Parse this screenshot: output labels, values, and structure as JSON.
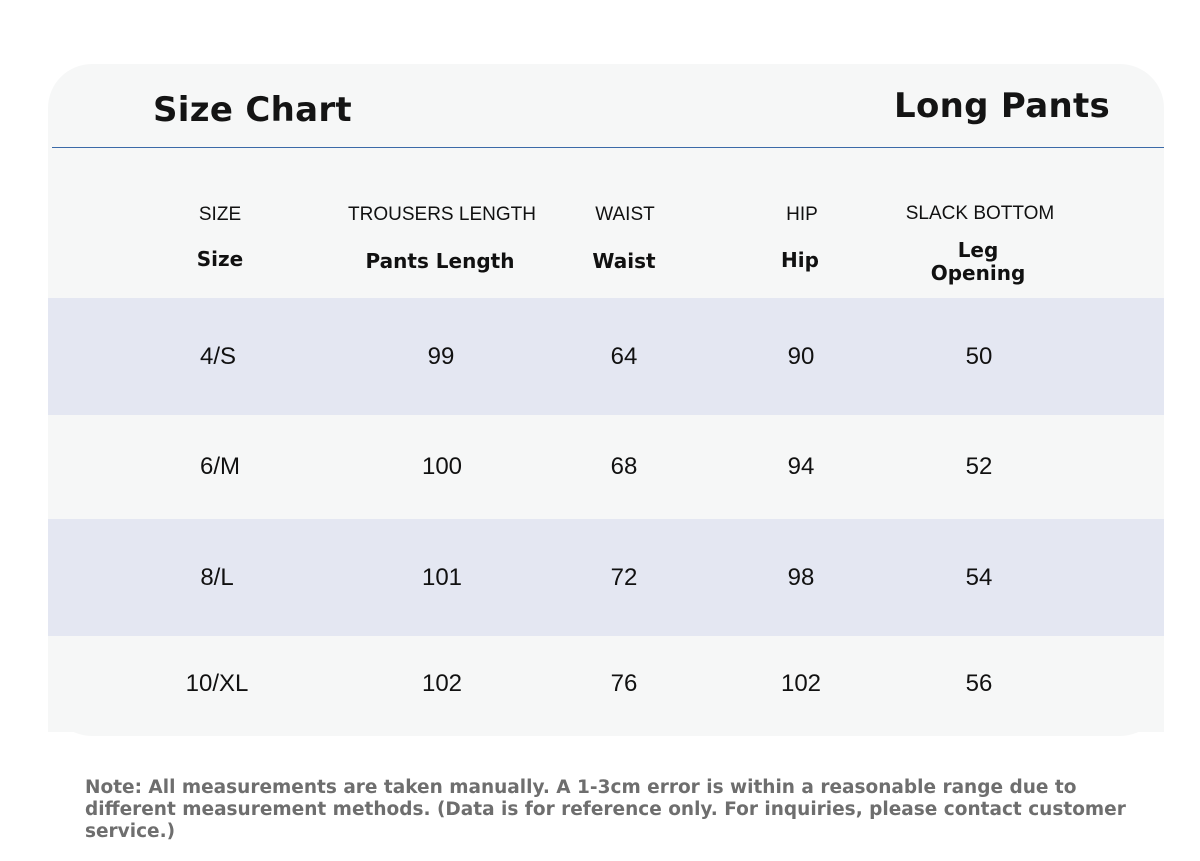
{
  "header": {
    "left_title": "Size Chart",
    "right_title": "Long Pants"
  },
  "columns": [
    {
      "key": "size",
      "label_en": "SIZE",
      "label": "Size"
    },
    {
      "key": "pants_length",
      "label_en": "TROUSERS LENGTH",
      "label": "Pants Length"
    },
    {
      "key": "waist",
      "label_en": "WAIST",
      "label": "Waist"
    },
    {
      "key": "hip",
      "label_en": "HIP",
      "label": "Hip"
    },
    {
      "key": "leg_opening",
      "label_en": "SLACK BOTTOM",
      "label": "Leg\nOpening"
    }
  ],
  "rows": [
    [
      "4/S",
      "99",
      "64",
      "90",
      "50"
    ],
    [
      "6/M",
      "100",
      "68",
      "94",
      "52"
    ],
    [
      "8/L",
      "101",
      "72",
      "98",
      "54"
    ],
    [
      "10/XL",
      "102",
      "76",
      "102",
      "56"
    ]
  ],
  "note": "Note: All measurements are taken manually. A 1-3cm error is within a reasonable range due to different measurement methods. (Data is for reference only. For inquiries, please contact customer service.)",
  "colors": {
    "card_bg": "#f6f7f7",
    "row_shade": "#e4e7f2",
    "rule": "#3b6aa8",
    "note_text": "#6e6e6e"
  }
}
